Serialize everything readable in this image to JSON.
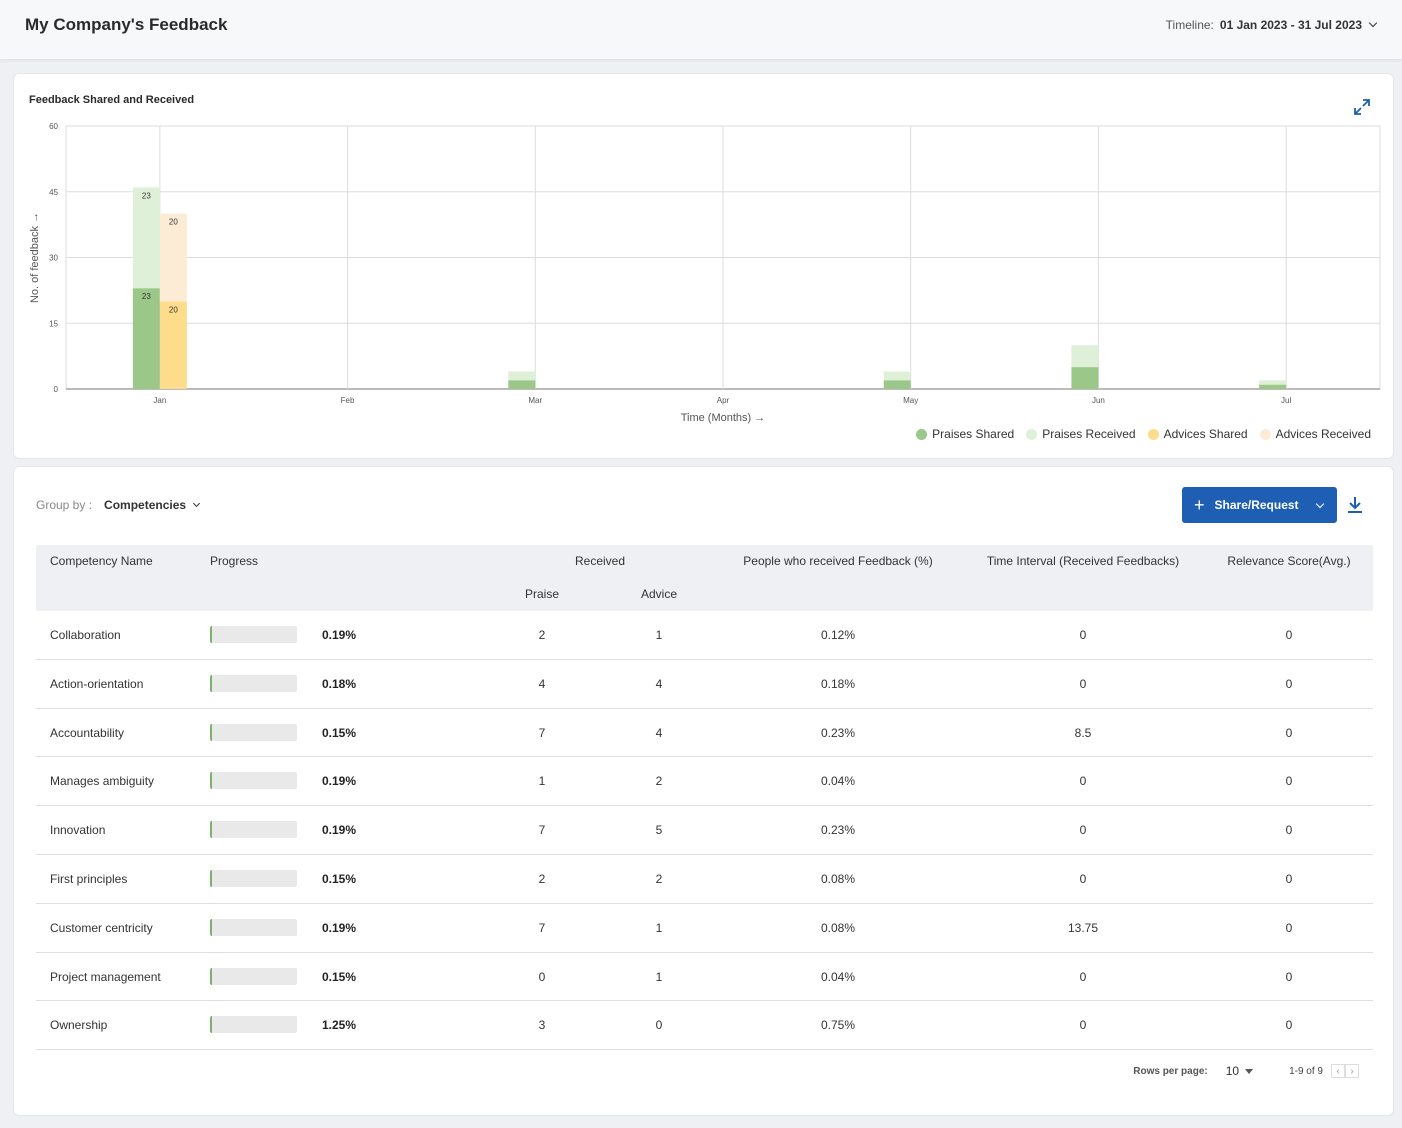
{
  "header": {
    "title": "My Company's Feedback",
    "timeline_label": "Timeline:",
    "timeline_value": "01 Jan 2023 - 31 Jul 2023"
  },
  "chart_card": {
    "title": "Feedback Shared and Received"
  },
  "chart_data": {
    "type": "bar",
    "title": "Feedback Shared and Received",
    "xlabel": "Time (Months) →",
    "ylabel": "No. of feedback →",
    "categories": [
      "Jan",
      "Feb",
      "Mar",
      "Apr",
      "May",
      "Jun",
      "Jul"
    ],
    "yticks": [
      "0",
      "15",
      "30",
      "45",
      "60"
    ],
    "ylim": [
      0,
      60
    ],
    "stacked_groups": [
      {
        "name": "Praises",
        "lower": "Praises Shared",
        "upper": "Praises Received"
      },
      {
        "name": "Advices",
        "lower": "Advices Shared",
        "upper": "Advices Received"
      }
    ],
    "series": [
      {
        "name": "Praises Shared",
        "color": "#9bc888",
        "values": [
          23,
          0,
          2,
          0,
          2,
          5,
          1
        ],
        "labels": [
          "23",
          "",
          "",
          "",
          "",
          "",
          ""
        ]
      },
      {
        "name": "Praises Received",
        "color": "#dff0d8",
        "values": [
          23,
          0,
          2,
          0,
          2,
          5,
          1
        ],
        "labels": [
          "23",
          "",
          "",
          "",
          "",
          "",
          ""
        ]
      },
      {
        "name": "Advices Shared",
        "color": "#fddc8c",
        "values": [
          20,
          0,
          0,
          0,
          0,
          0,
          0
        ],
        "labels": [
          "20",
          "",
          "",
          "",
          "",
          "",
          ""
        ]
      },
      {
        "name": "Advices Received",
        "color": "#fdecd5",
        "values": [
          20,
          0,
          0,
          0,
          0,
          0,
          0
        ],
        "labels": [
          "20",
          "",
          "",
          "",
          "",
          "",
          ""
        ]
      }
    ],
    "grid": true,
    "legend_position": "bottom-right"
  },
  "legend": [
    {
      "label": "Praises Shared",
      "color": "#9bc888"
    },
    {
      "label": "Praises Received",
      "color": "#dff0d8"
    },
    {
      "label": "Advices Shared",
      "color": "#fddc8c"
    },
    {
      "label": "Advices Received",
      "color": "#fdecd5"
    }
  ],
  "table_card": {
    "group_by_label": "Group by :",
    "group_by_value": "Competencies",
    "share_button_label": "Share/Request",
    "columns": {
      "name": "Competency Name",
      "progress": "Progress",
      "received": "Received",
      "praise": "Praise",
      "advice": "Advice",
      "people": "People who received Feedback (%)",
      "time_interval": "Time Interval (Received Feedbacks)",
      "relevance": "Relevance Score(Avg.)"
    },
    "rows": [
      {
        "name": "Collaboration",
        "progress": "0.19%",
        "praise": "2",
        "advice": "1",
        "people": "0.12%",
        "time": "0",
        "relevance": "0"
      },
      {
        "name": "Action-orientation",
        "progress": "0.18%",
        "praise": "4",
        "advice": "4",
        "people": "0.18%",
        "time": "0",
        "relevance": "0"
      },
      {
        "name": "Accountability",
        "progress": "0.15%",
        "praise": "7",
        "advice": "4",
        "people": "0.23%",
        "time": "8.5",
        "relevance": "0"
      },
      {
        "name": "Manages ambiguity",
        "progress": "0.19%",
        "praise": "1",
        "advice": "2",
        "people": "0.04%",
        "time": "0",
        "relevance": "0"
      },
      {
        "name": "Innovation",
        "progress": "0.19%",
        "praise": "7",
        "advice": "5",
        "people": "0.23%",
        "time": "0",
        "relevance": "0"
      },
      {
        "name": "First principles",
        "progress": "0.15%",
        "praise": "2",
        "advice": "2",
        "people": "0.08%",
        "time": "0",
        "relevance": "0"
      },
      {
        "name": "Customer centricity",
        "progress": "0.19%",
        "praise": "7",
        "advice": "1",
        "people": "0.08%",
        "time": "13.75",
        "relevance": "0"
      },
      {
        "name": "Project management",
        "progress": "0.15%",
        "praise": "0",
        "advice": "1",
        "people": "0.04%",
        "time": "0",
        "relevance": "0"
      },
      {
        "name": "Ownership",
        "progress": "1.25%",
        "praise": "3",
        "advice": "0",
        "people": "0.75%",
        "time": "0",
        "relevance": "0"
      }
    ],
    "pagination": {
      "rows_per_page_label": "Rows per page:",
      "rows_per_page_value": "10",
      "range": "1-9 of 9",
      "prev": "‹",
      "next": "›"
    }
  },
  "colors": {
    "accent": "#1e5fb4",
    "progress_fill": "#7cb36b"
  }
}
